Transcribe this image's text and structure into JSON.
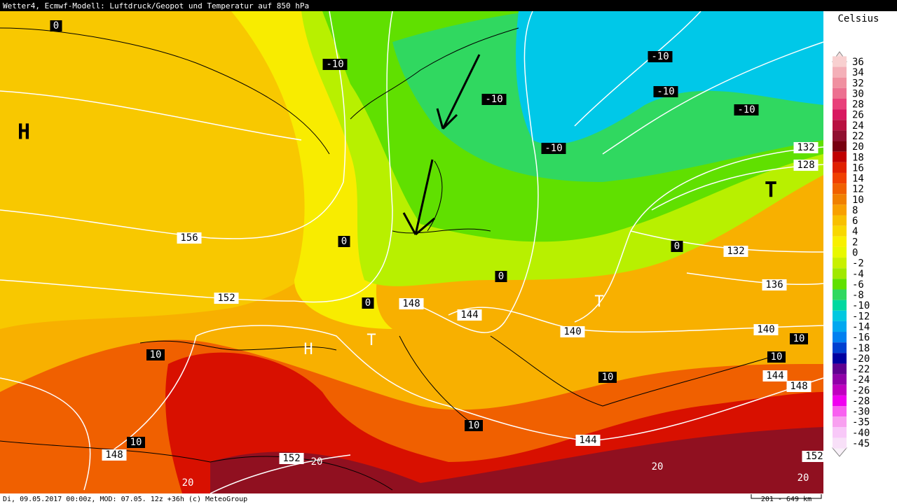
{
  "header": {
    "title": "Wetter4, Ecmwf-Modell: Luftdruck/Geopot und Temperatur auf 850 hPa"
  },
  "legend": {
    "title": "Celsius",
    "items": [
      {
        "value": 36,
        "color": "#f8d0d0"
      },
      {
        "value": 34,
        "color": "#f4b0b8"
      },
      {
        "value": 32,
        "color": "#f090a0"
      },
      {
        "value": 30,
        "color": "#ec7090"
      },
      {
        "value": 28,
        "color": "#e8407a"
      },
      {
        "value": 26,
        "color": "#d81860"
      },
      {
        "value": 24,
        "color": "#b81040"
      },
      {
        "value": 22,
        "color": "#901030"
      },
      {
        "value": 20,
        "color": "#780010"
      },
      {
        "value": 18,
        "color": "#c00000"
      },
      {
        "value": 16,
        "color": "#e02000"
      },
      {
        "value": 14,
        "color": "#f04000"
      },
      {
        "value": 12,
        "color": "#f06000"
      },
      {
        "value": 10,
        "color": "#f08000"
      },
      {
        "value": 8,
        "color": "#f8a000"
      },
      {
        "value": 6,
        "color": "#f8c000"
      },
      {
        "value": 4,
        "color": "#f8d800"
      },
      {
        "value": 2,
        "color": "#f8f000"
      },
      {
        "value": 0,
        "color": "#e8f800"
      },
      {
        "value": -2,
        "color": "#c8f000"
      },
      {
        "value": -4,
        "color": "#a0e800"
      },
      {
        "value": -6,
        "color": "#60e000"
      },
      {
        "value": -8,
        "color": "#30d860"
      },
      {
        "value": -10,
        "color": "#00d8a0"
      },
      {
        "value": -12,
        "color": "#00c8e0"
      },
      {
        "value": -14,
        "color": "#00a8f0"
      },
      {
        "value": -16,
        "color": "#0080f0"
      },
      {
        "value": -18,
        "color": "#0040d0"
      },
      {
        "value": -20,
        "color": "#0000a0"
      },
      {
        "value": -22,
        "color": "#600090"
      },
      {
        "value": -24,
        "color": "#9000a8"
      },
      {
        "value": -26,
        "color": "#c000c0"
      },
      {
        "value": -28,
        "color": "#f000f0"
      },
      {
        "value": -30,
        "color": "#f860f0"
      },
      {
        "value": -35,
        "color": "#f8a0f0"
      },
      {
        "value": -40,
        "color": "#f8c8f8"
      },
      {
        "value": -45,
        "color": "#f8e0f8"
      }
    ]
  },
  "map_labels": [
    "0",
    "-10",
    "-10",
    "-10",
    "-10",
    "-10",
    "-10",
    "H",
    "T",
    "132",
    "128",
    "156",
    "0",
    "0",
    "132",
    "136",
    "152",
    "0",
    "0",
    "148",
    "144",
    "T",
    "140",
    "140",
    "10",
    "10",
    "H",
    "T",
    "10",
    "10",
    "144",
    "148",
    "10",
    "144",
    "10",
    "148",
    "152",
    "20",
    "20",
    "152",
    "20",
    "20"
  ],
  "footer": {
    "text": "Di, 09.05.2017 00:00z, MOD: 07.05. 12z +36h (c) MeteoGroup",
    "scale": "201 - 649 km"
  }
}
